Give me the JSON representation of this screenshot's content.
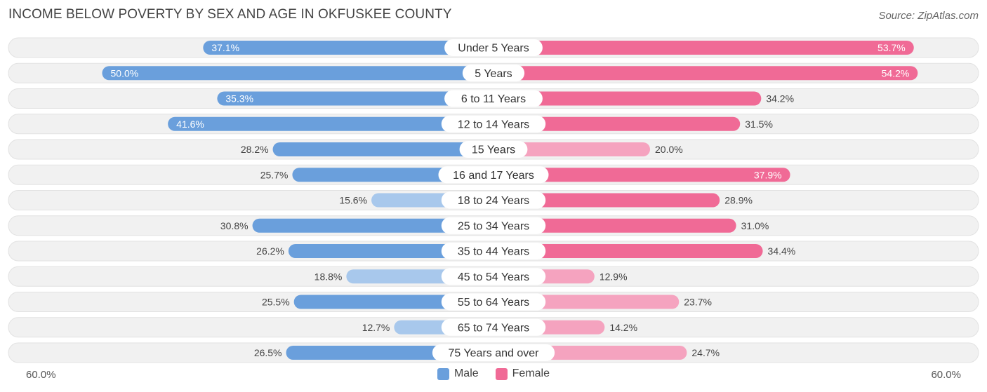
{
  "title": "INCOME BELOW POVERTY BY SEX AND AGE IN OKFUSKEE COUNTY",
  "source": "Source: ZipAtlas.com",
  "axis": {
    "left_label": "60.0%",
    "right_label": "60.0%"
  },
  "legend": {
    "male_label": "Male",
    "female_label": "Female"
  },
  "colors": {
    "male_strong": "#6a9fdc",
    "male_light": "#a8c8ec",
    "female_strong": "#f06a96",
    "female_light": "#f5a3bf",
    "row_bg": "#f1f1f1"
  },
  "chart_data": {
    "type": "bar",
    "orientation": "horizontal-diverging",
    "title": "INCOME BELOW POVERTY BY SEX AND AGE IN OKFUSKEE COUNTY",
    "xlim": [
      -60,
      60
    ],
    "categories": [
      "Under 5 Years",
      "5 Years",
      "6 to 11 Years",
      "12 to 14 Years",
      "15 Years",
      "16 and 17 Years",
      "18 to 24 Years",
      "25 to 34 Years",
      "35 to 44 Years",
      "45 to 54 Years",
      "55 to 64 Years",
      "65 to 74 Years",
      "75 Years and over"
    ],
    "series": [
      {
        "name": "Male",
        "values": [
          37.1,
          50.0,
          35.3,
          41.6,
          28.2,
          25.7,
          15.6,
          30.8,
          26.2,
          18.8,
          25.5,
          12.7,
          26.5
        ],
        "labels": [
          "37.1%",
          "50.0%",
          "35.3%",
          "41.6%",
          "28.2%",
          "25.7%",
          "15.6%",
          "30.8%",
          "26.2%",
          "18.8%",
          "25.5%",
          "12.7%",
          "26.5%"
        ]
      },
      {
        "name": "Female",
        "values": [
          53.7,
          54.2,
          34.2,
          31.5,
          20.0,
          37.9,
          28.9,
          31.0,
          34.4,
          12.9,
          23.7,
          14.2,
          24.7
        ],
        "labels": [
          "53.7%",
          "54.2%",
          "34.2%",
          "31.5%",
          "20.0%",
          "37.9%",
          "28.9%",
          "31.0%",
          "34.4%",
          "12.9%",
          "23.7%",
          "14.2%",
          "24.7%"
        ]
      }
    ],
    "legend_position": "bottom-center"
  }
}
